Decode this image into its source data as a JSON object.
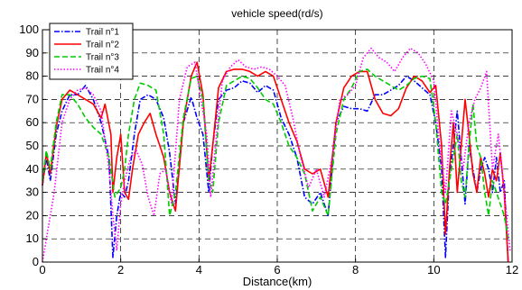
{
  "chart_data": {
    "type": "line",
    "title": "vehicle speed(rd/s)",
    "xlabel": "Distance(km)",
    "ylabel": "",
    "xlim": [
      0,
      12
    ],
    "ylim": [
      0,
      100
    ],
    "xticks": [
      0,
      2,
      4,
      6,
      8,
      10,
      12
    ],
    "yticks": [
      0,
      10,
      20,
      30,
      40,
      50,
      60,
      70,
      80,
      90,
      100
    ],
    "grid": "dashed",
    "legend": "top-left",
    "series": [
      {
        "name": "Trail n°1",
        "color": "#0000ff",
        "dash": "dashdot",
        "x": [
          0.0,
          0.1,
          0.2,
          0.35,
          0.5,
          0.7,
          0.9,
          1.1,
          1.3,
          1.5,
          1.7,
          1.8,
          1.9,
          2.0,
          2.1,
          2.2,
          2.35,
          2.5,
          2.7,
          2.9,
          3.1,
          3.25,
          3.4,
          3.6,
          3.8,
          3.95,
          4.1,
          4.25,
          4.35,
          4.5,
          4.7,
          4.9,
          5.1,
          5.3,
          5.5,
          5.7,
          5.9,
          6.1,
          6.3,
          6.5,
          6.7,
          6.9,
          7.1,
          7.3,
          7.5,
          7.7,
          7.9,
          8.1,
          8.3,
          8.5,
          8.7,
          8.9,
          9.1,
          9.3,
          9.5,
          9.7,
          9.9,
          10.05,
          10.2,
          10.3,
          10.4,
          10.5,
          10.6,
          10.7,
          10.8,
          10.9,
          11.0,
          11.1,
          11.2,
          11.3,
          11.4,
          11.5,
          11.6,
          11.7,
          11.8,
          11.9
        ],
        "y": [
          33,
          45,
          35,
          55,
          65,
          72,
          72,
          76,
          70,
          60,
          45,
          2,
          20,
          30,
          28,
          35,
          55,
          70,
          72,
          70,
          62,
          47,
          25,
          60,
          71,
          62,
          55,
          30,
          50,
          70,
          74,
          75,
          78,
          77,
          73,
          76,
          74,
          62,
          55,
          45,
          28,
          25,
          30,
          20,
          60,
          67,
          66,
          66,
          65,
          72,
          72,
          74,
          76,
          80,
          78,
          75,
          72,
          60,
          40,
          2,
          38,
          50,
          65,
          45,
          25,
          50,
          40,
          30,
          40,
          45,
          40,
          30,
          45,
          30,
          35,
          0
        ]
      },
      {
        "name": "Trail n°2",
        "color": "#ff0000",
        "dash": "solid",
        "x": [
          0.0,
          0.1,
          0.2,
          0.35,
          0.5,
          0.7,
          0.9,
          1.1,
          1.3,
          1.5,
          1.6,
          1.75,
          1.8,
          1.9,
          2.0,
          2.1,
          2.2,
          2.3,
          2.45,
          2.6,
          2.75,
          2.9,
          3.1,
          3.25,
          3.4,
          3.6,
          3.8,
          3.95,
          4.1,
          4.25,
          4.35,
          4.5,
          4.7,
          4.9,
          5.1,
          5.3,
          5.5,
          5.7,
          5.9,
          6.1,
          6.3,
          6.5,
          6.7,
          6.9,
          7.1,
          7.3,
          7.5,
          7.7,
          7.9,
          8.1,
          8.3,
          8.5,
          8.7,
          8.9,
          9.1,
          9.3,
          9.5,
          9.7,
          9.9,
          10.05,
          10.2,
          10.3,
          10.4,
          10.5,
          10.6,
          10.7,
          10.8,
          10.9,
          11.0,
          11.1,
          11.2,
          11.3,
          11.4,
          11.5,
          11.6,
          11.7,
          11.8,
          11.9
        ],
        "y": [
          33,
          47,
          38,
          58,
          70,
          74,
          72,
          70,
          68,
          62,
          68,
          55,
          30,
          45,
          55,
          30,
          27,
          40,
          55,
          60,
          64,
          55,
          45,
          30,
          22,
          60,
          80,
          86,
          72,
          35,
          50,
          75,
          82,
          83,
          83,
          82,
          80,
          82,
          80,
          70,
          60,
          52,
          40,
          38,
          40,
          28,
          60,
          75,
          80,
          82,
          82,
          70,
          64,
          63,
          66,
          75,
          80,
          78,
          73,
          76,
          50,
          12,
          40,
          60,
          30,
          50,
          70,
          55,
          38,
          30,
          45,
          38,
          28,
          40,
          35,
          47,
          30,
          0
        ]
      },
      {
        "name": "Trail n°3",
        "color": "#00cc00",
        "dash": "dash",
        "x": [
          0.0,
          0.1,
          0.2,
          0.35,
          0.5,
          0.7,
          0.9,
          1.1,
          1.3,
          1.5,
          1.7,
          1.85,
          2.0,
          2.1,
          2.2,
          2.35,
          2.5,
          2.7,
          2.9,
          3.1,
          3.25,
          3.4,
          3.6,
          3.8,
          3.95,
          4.1,
          4.25,
          4.35,
          4.5,
          4.7,
          4.9,
          5.1,
          5.3,
          5.5,
          5.7,
          5.9,
          6.1,
          6.3,
          6.5,
          6.7,
          6.9,
          7.1,
          7.3,
          7.5,
          7.7,
          7.9,
          8.1,
          8.3,
          8.5,
          8.7,
          8.9,
          9.1,
          9.3,
          9.5,
          9.7,
          9.9,
          10.05,
          10.2,
          10.3,
          10.4,
          10.5,
          10.6,
          10.7,
          10.8,
          10.9,
          11.0,
          11.1,
          11.2,
          11.3,
          11.4,
          11.5,
          11.6,
          11.7,
          11.8,
          11.9
        ],
        "y": [
          35,
          48,
          40,
          60,
          72,
          72,
          68,
          62,
          58,
          55,
          45,
          28,
          32,
          40,
          55,
          70,
          77,
          76,
          74,
          55,
          20,
          30,
          62,
          79,
          80,
          70,
          35,
          30,
          60,
          76,
          78,
          80,
          79,
          75,
          70,
          68,
          60,
          50,
          45,
          38,
          22,
          28,
          20,
          55,
          70,
          75,
          82,
          83,
          80,
          78,
          76,
          74,
          76,
          79,
          80,
          79,
          60,
          30,
          25,
          35,
          45,
          55,
          35,
          28,
          50,
          68,
          50,
          45,
          30,
          20,
          35,
          30,
          25,
          20,
          10
        ]
      },
      {
        "name": "Trail n°4",
        "color": "#ff00ff",
        "dash": "dot",
        "x": [
          0.0,
          0.15,
          0.3,
          0.5,
          0.7,
          0.9,
          1.1,
          1.3,
          1.5,
          1.7,
          1.8,
          1.9,
          2.0,
          2.1,
          2.25,
          2.4,
          2.55,
          2.7,
          2.85,
          3.0,
          3.15,
          3.3,
          3.5,
          3.7,
          3.9,
          4.05,
          4.2,
          4.3,
          4.45,
          4.6,
          4.8,
          5.0,
          5.2,
          5.4,
          5.6,
          5.8,
          6.0,
          6.2,
          6.4,
          6.6,
          6.8,
          7.0,
          7.2,
          7.4,
          7.6,
          7.8,
          8.0,
          8.2,
          8.4,
          8.6,
          8.8,
          9.0,
          9.2,
          9.4,
          9.6,
          9.8,
          10.0,
          10.15,
          10.3,
          10.45,
          10.6,
          10.75,
          10.9,
          11.05,
          11.2,
          11.35,
          11.5,
          11.65,
          11.8,
          11.95
        ],
        "y": [
          0,
          15,
          30,
          60,
          70,
          74,
          75,
          72,
          65,
          40,
          20,
          5,
          25,
          35,
          45,
          48,
          42,
          28,
          20,
          38,
          40,
          25,
          70,
          84,
          86,
          70,
          55,
          28,
          55,
          78,
          84,
          87,
          84,
          83,
          84,
          83,
          80,
          76,
          62,
          45,
          32,
          40,
          28,
          45,
          70,
          72,
          76,
          88,
          92,
          88,
          86,
          82,
          88,
          92,
          90,
          85,
          78,
          50,
          30,
          65,
          55,
          40,
          60,
          70,
          75,
          82,
          40,
          55,
          30,
          5
        ]
      }
    ]
  }
}
